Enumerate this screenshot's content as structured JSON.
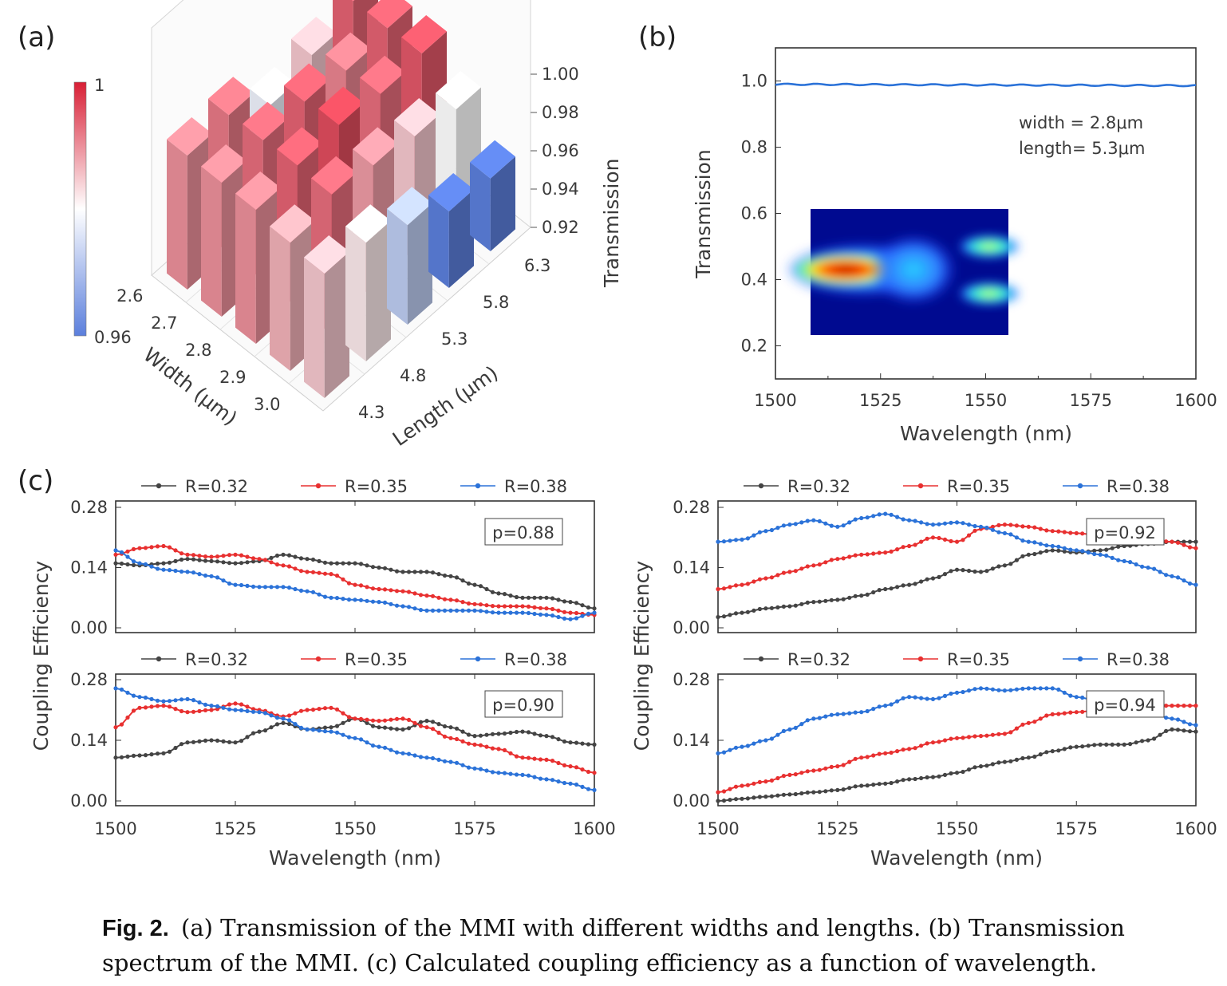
{
  "panel_labels": {
    "a": "(a)",
    "b": "(b)",
    "c": "(c)"
  },
  "caption": {
    "figure_number": "Fig. 2.",
    "text": "(a) Transmission of the MMI with different widths and lengths. (b) Transmission spectrum of the MMI. (c) Calculated coupling efficiency as a function of wavelength."
  },
  "chart_data": [
    {
      "id": "a",
      "type": "bar3d",
      "xlabel": "Width (μm)",
      "ylabel": "Length (μm)",
      "zlabel": "Transmission",
      "widths": [
        "2.6",
        "2.7",
        "2.8",
        "2.9",
        "3.0"
      ],
      "lengths": [
        "4.3",
        "4.8",
        "5.3",
        "5.8",
        "6.3"
      ],
      "zticks": [
        "0.92",
        "0.94",
        "0.96",
        "0.98",
        "1.00"
      ],
      "zlim": [
        0.92,
        1.0
      ],
      "colorbar": {
        "min_label": "0.96",
        "max_label": "1",
        "range": [
          0.96,
          1.0
        ],
        "colors": [
          "#5b7fdc",
          "#ffffff",
          "#d81f35"
        ]
      },
      "values": [
        [
          0.985,
          0.987,
          0.99,
          0.99,
          0.99
        ],
        [
          0.982,
          0.993,
          0.994,
          0.993,
          0.992
        ],
        [
          0.972,
          0.989,
          0.996,
          0.994,
          0.978
        ],
        [
          0.96,
          0.985,
          0.993,
          0.991,
          0.985
        ],
        [
          0.958,
          0.98,
          0.995,
          0.994,
          0.994
        ]
      ]
    },
    {
      "id": "b",
      "type": "line",
      "xlabel": "Wavelength (nm)",
      "ylabel": "Transmission",
      "xlim": [
        1500,
        1600
      ],
      "ylim": [
        0.1,
        1.1
      ],
      "xticks": [
        1500,
        1525,
        1550,
        1575,
        1600
      ],
      "yticks": [
        "0.2",
        "0.4",
        "0.6",
        "0.8",
        "1.0"
      ],
      "annotations": [
        "width = 2.8μm",
        "length= 5.3μm"
      ],
      "series": [
        {
          "color": "#2b72d8",
          "x": [
            1500,
            1525,
            1550,
            1575,
            1600
          ],
          "y": [
            0.99,
            0.989,
            0.988,
            0.988,
            0.986
          ]
        }
      ]
    },
    {
      "id": "c1",
      "type": "line",
      "annotation": "p=0.88",
      "xlim": [
        1500,
        1600
      ],
      "ylim": [
        0,
        0.28
      ],
      "xticks": [
        1500,
        1525,
        1550,
        1575,
        1600
      ],
      "yticks": [
        "0.00",
        "0.14",
        "0.28"
      ],
      "x": [
        1500,
        1505,
        1510,
        1515,
        1520,
        1525,
        1530,
        1535,
        1540,
        1545,
        1550,
        1555,
        1560,
        1565,
        1570,
        1575,
        1580,
        1585,
        1590,
        1595,
        1600
      ],
      "series": [
        {
          "name": "R=0.32",
          "color": "#444444",
          "values": [
            0.15,
            0.145,
            0.15,
            0.16,
            0.155,
            0.15,
            0.155,
            0.17,
            0.16,
            0.15,
            0.15,
            0.14,
            0.13,
            0.13,
            0.12,
            0.1,
            0.08,
            0.07,
            0.07,
            0.06,
            0.045
          ]
        },
        {
          "name": "R=0.35",
          "color": "#e83030",
          "values": [
            0.17,
            0.185,
            0.19,
            0.17,
            0.165,
            0.17,
            0.16,
            0.145,
            0.13,
            0.125,
            0.1,
            0.09,
            0.085,
            0.075,
            0.065,
            0.055,
            0.05,
            0.05,
            0.045,
            0.035,
            0.03
          ]
        },
        {
          "name": "R=0.38",
          "color": "#2b72d8",
          "values": [
            0.18,
            0.15,
            0.135,
            0.13,
            0.12,
            0.1,
            0.095,
            0.095,
            0.085,
            0.07,
            0.065,
            0.06,
            0.05,
            0.04,
            0.04,
            0.04,
            0.035,
            0.035,
            0.03,
            0.02,
            0.035
          ]
        }
      ]
    },
    {
      "id": "c2",
      "type": "line",
      "annotation": "p=0.92",
      "xlim": [
        1500,
        1600
      ],
      "ylim": [
        0,
        0.28
      ],
      "xticks": [
        1500,
        1525,
        1550,
        1575,
        1600
      ],
      "yticks": [
        "0.00",
        "0.14",
        "0.28"
      ],
      "x": [
        1500,
        1505,
        1510,
        1515,
        1520,
        1525,
        1530,
        1535,
        1540,
        1545,
        1550,
        1555,
        1560,
        1565,
        1570,
        1575,
        1580,
        1585,
        1590,
        1595,
        1600
      ],
      "series": [
        {
          "name": "R=0.32",
          "color": "#444444",
          "values": [
            0.025,
            0.035,
            0.045,
            0.05,
            0.06,
            0.065,
            0.075,
            0.09,
            0.1,
            0.115,
            0.135,
            0.13,
            0.145,
            0.17,
            0.18,
            0.175,
            0.18,
            0.19,
            0.195,
            0.2,
            0.2
          ]
        },
        {
          "name": "R=0.35",
          "color": "#e83030",
          "values": [
            0.09,
            0.1,
            0.115,
            0.13,
            0.145,
            0.16,
            0.17,
            0.175,
            0.19,
            0.21,
            0.2,
            0.23,
            0.24,
            0.235,
            0.225,
            0.22,
            0.215,
            0.21,
            0.205,
            0.2,
            0.185
          ]
        },
        {
          "name": "R=0.38",
          "color": "#2b72d8",
          "values": [
            0.2,
            0.205,
            0.225,
            0.24,
            0.25,
            0.235,
            0.255,
            0.265,
            0.25,
            0.24,
            0.245,
            0.235,
            0.22,
            0.2,
            0.19,
            0.18,
            0.17,
            0.155,
            0.14,
            0.12,
            0.1
          ]
        }
      ]
    },
    {
      "id": "c3",
      "type": "line",
      "annotation": "p=0.90",
      "xlim": [
        1500,
        1600
      ],
      "ylim": [
        0,
        0.28
      ],
      "xticks": [
        1500,
        1525,
        1550,
        1575,
        1600
      ],
      "yticks": [
        "0.00",
        "0.14",
        "0.28"
      ],
      "x": [
        1500,
        1505,
        1510,
        1515,
        1520,
        1525,
        1530,
        1535,
        1540,
        1545,
        1550,
        1555,
        1560,
        1565,
        1570,
        1575,
        1580,
        1585,
        1590,
        1595,
        1600
      ],
      "series": [
        {
          "name": "R=0.32",
          "color": "#444444",
          "values": [
            0.1,
            0.105,
            0.11,
            0.135,
            0.14,
            0.135,
            0.16,
            0.18,
            0.165,
            0.17,
            0.19,
            0.17,
            0.165,
            0.185,
            0.17,
            0.15,
            0.155,
            0.16,
            0.15,
            0.135,
            0.13
          ]
        },
        {
          "name": "R=0.35",
          "color": "#e83030",
          "values": [
            0.17,
            0.215,
            0.22,
            0.205,
            0.21,
            0.225,
            0.21,
            0.195,
            0.21,
            0.215,
            0.19,
            0.185,
            0.19,
            0.17,
            0.145,
            0.13,
            0.12,
            0.1,
            0.095,
            0.08,
            0.065
          ]
        },
        {
          "name": "R=0.38",
          "color": "#2b72d8",
          "values": [
            0.26,
            0.24,
            0.23,
            0.235,
            0.22,
            0.21,
            0.205,
            0.19,
            0.165,
            0.16,
            0.145,
            0.125,
            0.11,
            0.1,
            0.09,
            0.075,
            0.065,
            0.06,
            0.05,
            0.04,
            0.025
          ]
        }
      ]
    },
    {
      "id": "c4",
      "type": "line",
      "annotation": "p=0.94",
      "xlim": [
        1500,
        1600
      ],
      "ylim": [
        0,
        0.28
      ],
      "xticks": [
        1500,
        1525,
        1550,
        1575,
        1600
      ],
      "yticks": [
        "0.00",
        "0.14",
        "0.28"
      ],
      "x": [
        1500,
        1505,
        1510,
        1515,
        1520,
        1525,
        1530,
        1535,
        1540,
        1545,
        1550,
        1555,
        1560,
        1565,
        1570,
        1575,
        1580,
        1585,
        1590,
        1595,
        1600
      ],
      "series": [
        {
          "name": "R=0.32",
          "color": "#444444",
          "values": [
            0.0,
            0.005,
            0.01,
            0.015,
            0.02,
            0.025,
            0.035,
            0.04,
            0.05,
            0.055,
            0.065,
            0.08,
            0.09,
            0.1,
            0.115,
            0.125,
            0.13,
            0.13,
            0.14,
            0.165,
            0.16
          ]
        },
        {
          "name": "R=0.35",
          "color": "#e83030",
          "values": [
            0.02,
            0.035,
            0.045,
            0.06,
            0.07,
            0.08,
            0.1,
            0.11,
            0.12,
            0.135,
            0.145,
            0.15,
            0.155,
            0.18,
            0.2,
            0.205,
            0.21,
            0.215,
            0.22,
            0.22,
            0.22
          ]
        },
        {
          "name": "R=0.38",
          "color": "#2b72d8",
          "values": [
            0.11,
            0.125,
            0.14,
            0.165,
            0.19,
            0.2,
            0.205,
            0.22,
            0.24,
            0.235,
            0.25,
            0.26,
            0.255,
            0.26,
            0.26,
            0.24,
            0.23,
            0.215,
            0.205,
            0.19,
            0.175
          ]
        }
      ]
    }
  ],
  "axis_labels_c": {
    "ylabel_left": "Coupling Efficiency",
    "ylabel_right": "Coupling Efficiency",
    "xlabel_left": "Wavelength (nm)",
    "xlabel_right": "Wavelength (nm)"
  }
}
